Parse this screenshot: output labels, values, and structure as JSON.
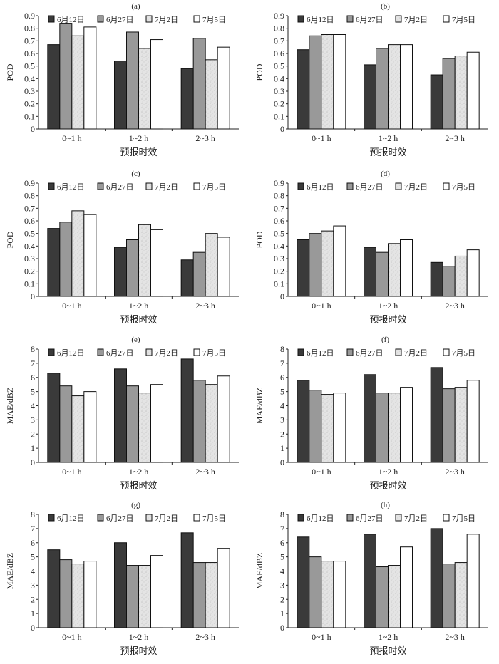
{
  "chart_data": [
    {
      "panel": "(a)",
      "type": "bar",
      "categories": [
        "0~1 h",
        "1~2 h",
        "2~3 h"
      ],
      "xlabel": "预报时效",
      "ylabel": "POD",
      "ylim": [
        0,
        0.9
      ],
      "yticks": [
        "0",
        "0.1",
        "0.2",
        "0.3",
        "0.4",
        "0.5",
        "0.6",
        "0.7",
        "0.8",
        "0.9"
      ],
      "ystep": 0.1,
      "legend": "top",
      "series": [
        {
          "name": "6月12日",
          "values": [
            0.67,
            0.54,
            0.48
          ]
        },
        {
          "name": "6月27日",
          "values": [
            0.84,
            0.77,
            0.72
          ]
        },
        {
          "name": "7月2日",
          "values": [
            0.74,
            0.64,
            0.55
          ]
        },
        {
          "name": "7月5日",
          "values": [
            0.81,
            0.71,
            0.65
          ]
        }
      ]
    },
    {
      "panel": "(b)",
      "type": "bar",
      "categories": [
        "0~1 h",
        "1~2 h",
        "2~3 h"
      ],
      "xlabel": "预报时效",
      "ylabel": "POD",
      "ylim": [
        0,
        0.9
      ],
      "yticks": [
        "0",
        "0.1",
        "0.2",
        "0.3",
        "0.4",
        "0.5",
        "0.6",
        "0.7",
        "0.8",
        "0.9"
      ],
      "ystep": 0.1,
      "legend": "top",
      "series": [
        {
          "name": "6月12日",
          "values": [
            0.63,
            0.51,
            0.43
          ]
        },
        {
          "name": "6月27日",
          "values": [
            0.74,
            0.64,
            0.56
          ]
        },
        {
          "name": "7月2日",
          "values": [
            0.75,
            0.67,
            0.58
          ]
        },
        {
          "name": "7月5日",
          "values": [
            0.75,
            0.67,
            0.61
          ]
        }
      ]
    },
    {
      "panel": "(c)",
      "type": "bar",
      "categories": [
        "0~1 h",
        "1~2 h",
        "2~3 h"
      ],
      "xlabel": "预报时效",
      "ylabel": "POD",
      "ylim": [
        0,
        0.9
      ],
      "yticks": [
        "0",
        "0.1",
        "0.2",
        "0.3",
        "0.4",
        "0.5",
        "0.6",
        "0.7",
        "0.8",
        "0.9"
      ],
      "ystep": 0.1,
      "legend": "top",
      "series": [
        {
          "name": "6月12日",
          "values": [
            0.54,
            0.39,
            0.29
          ]
        },
        {
          "name": "6月27日",
          "values": [
            0.59,
            0.45,
            0.35
          ]
        },
        {
          "name": "7月2日",
          "values": [
            0.68,
            0.57,
            0.5
          ]
        },
        {
          "name": "7月5日",
          "values": [
            0.65,
            0.53,
            0.47
          ]
        }
      ]
    },
    {
      "panel": "(d)",
      "type": "bar",
      "categories": [
        "0~1 h",
        "1~2 h",
        "2~3 h"
      ],
      "xlabel": "预报时效",
      "ylabel": "POD",
      "ylim": [
        0,
        0.9
      ],
      "yticks": [
        "0",
        "0.1",
        "0.2",
        "0.3",
        "0.4",
        "0.5",
        "0.6",
        "0.7",
        "0.8",
        "0.9"
      ],
      "ystep": 0.1,
      "legend": "top",
      "series": [
        {
          "name": "6月12日",
          "values": [
            0.45,
            0.39,
            0.27
          ]
        },
        {
          "name": "6月27日",
          "values": [
            0.5,
            0.35,
            0.24
          ]
        },
        {
          "name": "7月2日",
          "values": [
            0.52,
            0.42,
            0.32
          ]
        },
        {
          "name": "7月5日",
          "values": [
            0.56,
            0.45,
            0.37
          ]
        }
      ]
    },
    {
      "panel": "(e)",
      "type": "bar",
      "categories": [
        "0~1 h",
        "1~2 h",
        "2~3 h"
      ],
      "xlabel": "预报时效",
      "ylabel": "MAE/dBZ",
      "ylim": [
        0,
        8
      ],
      "yticks": [
        "0",
        "1",
        "2",
        "3",
        "4",
        "5",
        "6",
        "7",
        "8"
      ],
      "ystep": 1,
      "legend": "top",
      "series": [
        {
          "name": "6月12日",
          "values": [
            6.3,
            6.6,
            7.3
          ]
        },
        {
          "name": "6月27日",
          "values": [
            5.4,
            5.4,
            5.8
          ]
        },
        {
          "name": "7月2日",
          "values": [
            4.7,
            4.9,
            5.5
          ]
        },
        {
          "name": "7月5日",
          "values": [
            5.0,
            5.5,
            6.1
          ]
        }
      ]
    },
    {
      "panel": "(f)",
      "type": "bar",
      "categories": [
        "0~1 h",
        "1~2 h",
        "2~3 h"
      ],
      "xlabel": "预报时效",
      "ylabel": "MAE/dBZ",
      "ylim": [
        0,
        8
      ],
      "yticks": [
        "0",
        "1",
        "2",
        "3",
        "4",
        "5",
        "6",
        "7",
        "8"
      ],
      "ystep": 1,
      "legend": "top",
      "series": [
        {
          "name": "6月12日",
          "values": [
            5.8,
            6.2,
            6.7
          ]
        },
        {
          "name": "6月27日",
          "values": [
            5.1,
            4.9,
            5.2
          ]
        },
        {
          "name": "7月2日",
          "values": [
            4.8,
            4.9,
            5.3
          ]
        },
        {
          "name": "7月5日",
          "values": [
            4.9,
            5.3,
            5.8
          ]
        }
      ]
    },
    {
      "panel": "(g)",
      "type": "bar",
      "categories": [
        "0~1 h",
        "1~2 h",
        "2~3 h"
      ],
      "xlabel": "预报时效",
      "ylabel": "MAE/dBZ",
      "ylim": [
        0,
        8
      ],
      "yticks": [
        "0",
        "1",
        "2",
        "3",
        "4",
        "5",
        "6",
        "7",
        "8"
      ],
      "ystep": 1,
      "legend": "top",
      "series": [
        {
          "name": "6月12日",
          "values": [
            5.5,
            6.0,
            6.7
          ]
        },
        {
          "name": "6月27日",
          "values": [
            4.8,
            4.4,
            4.6
          ]
        },
        {
          "name": "7月2日",
          "values": [
            4.5,
            4.4,
            4.6
          ]
        },
        {
          "name": "7月5日",
          "values": [
            4.7,
            5.1,
            5.6
          ]
        }
      ]
    },
    {
      "panel": "(h)",
      "type": "bar",
      "categories": [
        "0~1 h",
        "1~2 h",
        "2~3 h"
      ],
      "xlabel": "预报时效",
      "ylabel": "MAE/dBZ",
      "ylim": [
        0,
        8
      ],
      "yticks": [
        "0",
        "1",
        "2",
        "3",
        "4",
        "5",
        "6",
        "7",
        "8"
      ],
      "ystep": 1,
      "legend": "top",
      "series": [
        {
          "name": "6月12日",
          "values": [
            6.4,
            6.6,
            7.0
          ]
        },
        {
          "name": "6月27日",
          "values": [
            5.0,
            4.3,
            4.5
          ]
        },
        {
          "name": "7月2日",
          "values": [
            4.7,
            4.4,
            4.6
          ]
        },
        {
          "name": "7月5日",
          "values": [
            4.7,
            5.7,
            6.6
          ]
        }
      ]
    }
  ],
  "series_colors": [
    "#3a3a3a",
    "#999999",
    "#e2e2e2",
    "#ffffff"
  ]
}
